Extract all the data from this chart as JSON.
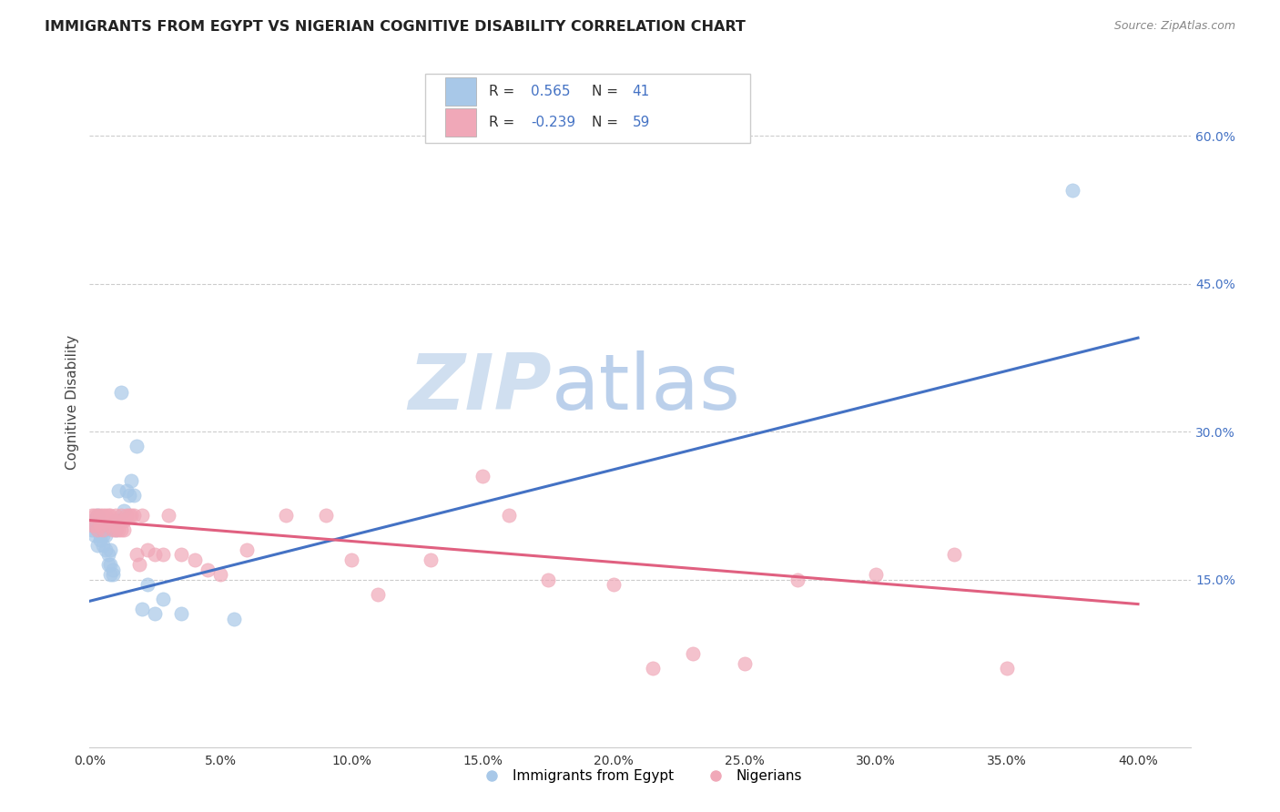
{
  "title": "IMMIGRANTS FROM EGYPT VS NIGERIAN COGNITIVE DISABILITY CORRELATION CHART",
  "source": "Source: ZipAtlas.com",
  "ylabel": "Cognitive Disability",
  "xlim": [
    0.0,
    0.42
  ],
  "ylim": [
    -0.02,
    0.68
  ],
  "xticks": [
    0.0,
    0.05,
    0.1,
    0.15,
    0.2,
    0.25,
    0.3,
    0.35,
    0.4
  ],
  "yticks_right": [
    0.15,
    0.3,
    0.45,
    0.6
  ],
  "ytick_labels_right": [
    "15.0%",
    "30.0%",
    "45.0%",
    "60.0%"
  ],
  "xtick_labels": [
    "0.0%",
    "5.0%",
    "10.0%",
    "15.0%",
    "20.0%",
    "25.0%",
    "30.0%",
    "35.0%",
    "40.0%"
  ],
  "color_egypt": "#a8c8e8",
  "color_nigeria": "#f0a8b8",
  "color_line_egypt": "#4472c4",
  "color_line_nigeria": "#e06080",
  "watermark_zip": "ZIP",
  "watermark_atlas": "atlas",
  "watermark_color": "#d0dff0",
  "egypt_scatter_x": [
    0.001,
    0.001,
    0.002,
    0.002,
    0.003,
    0.003,
    0.003,
    0.004,
    0.004,
    0.004,
    0.005,
    0.005,
    0.005,
    0.006,
    0.006,
    0.006,
    0.007,
    0.007,
    0.008,
    0.008,
    0.008,
    0.009,
    0.009,
    0.01,
    0.01,
    0.011,
    0.012,
    0.013,
    0.014,
    0.015,
    0.016,
    0.017,
    0.018,
    0.02,
    0.022,
    0.025,
    0.028,
    0.035,
    0.055,
    0.375
  ],
  "egypt_scatter_y": [
    0.2,
    0.21,
    0.195,
    0.205,
    0.185,
    0.215,
    0.2,
    0.19,
    0.205,
    0.195,
    0.195,
    0.185,
    0.2,
    0.18,
    0.2,
    0.195,
    0.165,
    0.175,
    0.155,
    0.165,
    0.18,
    0.155,
    0.16,
    0.2,
    0.21,
    0.24,
    0.34,
    0.22,
    0.24,
    0.235,
    0.25,
    0.235,
    0.285,
    0.12,
    0.145,
    0.115,
    0.13,
    0.115,
    0.11,
    0.545
  ],
  "nigeria_scatter_x": [
    0.001,
    0.001,
    0.002,
    0.002,
    0.003,
    0.003,
    0.004,
    0.004,
    0.005,
    0.005,
    0.005,
    0.006,
    0.006,
    0.007,
    0.007,
    0.008,
    0.008,
    0.009,
    0.009,
    0.01,
    0.01,
    0.011,
    0.011,
    0.012,
    0.012,
    0.013,
    0.013,
    0.014,
    0.015,
    0.016,
    0.017,
    0.018,
    0.019,
    0.02,
    0.022,
    0.025,
    0.028,
    0.03,
    0.035,
    0.04,
    0.045,
    0.05,
    0.06,
    0.075,
    0.09,
    0.1,
    0.11,
    0.13,
    0.15,
    0.16,
    0.175,
    0.2,
    0.215,
    0.23,
    0.25,
    0.27,
    0.3,
    0.33,
    0.35
  ],
  "nigeria_scatter_y": [
    0.215,
    0.205,
    0.205,
    0.215,
    0.2,
    0.215,
    0.205,
    0.215,
    0.215,
    0.21,
    0.2,
    0.21,
    0.215,
    0.205,
    0.215,
    0.21,
    0.215,
    0.2,
    0.21,
    0.2,
    0.215,
    0.21,
    0.2,
    0.215,
    0.2,
    0.21,
    0.2,
    0.215,
    0.215,
    0.215,
    0.215,
    0.175,
    0.165,
    0.215,
    0.18,
    0.175,
    0.175,
    0.215,
    0.175,
    0.17,
    0.16,
    0.155,
    0.18,
    0.215,
    0.215,
    0.17,
    0.135,
    0.17,
    0.255,
    0.215,
    0.15,
    0.145,
    0.06,
    0.075,
    0.065,
    0.15,
    0.155,
    0.175,
    0.06
  ],
  "egypt_line_x": [
    0.0,
    0.4
  ],
  "egypt_line_y": [
    0.128,
    0.395
  ],
  "nigeria_line_x": [
    0.0,
    0.4
  ],
  "nigeria_line_y": [
    0.21,
    0.125
  ]
}
